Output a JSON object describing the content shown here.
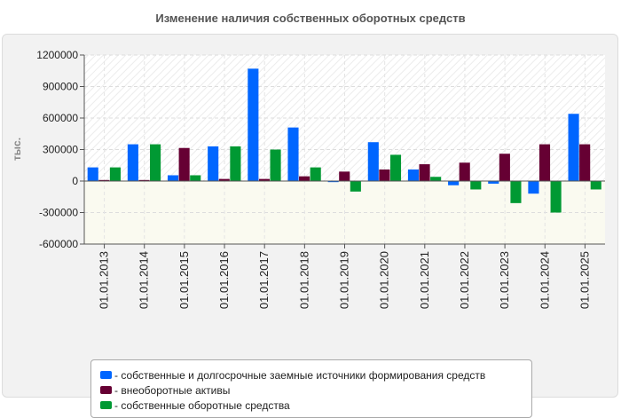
{
  "chart_data": {
    "type": "bar",
    "title": "Изменение наличия собственных оборотных средств",
    "xlabel": "",
    "ylabel": "тыс.",
    "ylim": [
      -600000,
      1200000
    ],
    "yticks": [
      1200000,
      900000,
      600000,
      300000,
      0,
      -300000,
      -600000
    ],
    "grid": true,
    "legend_position": "bottom",
    "categories": [
      "01.01.2013",
      "01.01.2014",
      "01.01.2015",
      "01.01.2016",
      "01.01.2017",
      "01.01.2018",
      "01.01.2019",
      "01.01.2020",
      "01.01.2021",
      "01.01.2022",
      "01.01.2023",
      "01.01.2024",
      "01.01.2025"
    ],
    "series": [
      {
        "name": "- собственные и долгосрочные заемные источники формирования средств",
        "color": "#0066ff",
        "values": [
          130000,
          350000,
          55000,
          330000,
          1070000,
          510000,
          -10000,
          370000,
          110000,
          -40000,
          -25000,
          -120000,
          640000
        ]
      },
      {
        "name": "- внеоборотные активы",
        "color": "#660033",
        "values": [
          10000,
          10000,
          315000,
          20000,
          20000,
          45000,
          90000,
          110000,
          160000,
          175000,
          260000,
          350000,
          350000
        ]
      },
      {
        "name": "- собственные оборотные средства",
        "color": "#009933",
        "values": [
          130000,
          350000,
          55000,
          330000,
          300000,
          130000,
          -100000,
          250000,
          40000,
          -80000,
          -210000,
          -300000,
          -80000
        ]
      }
    ]
  }
}
